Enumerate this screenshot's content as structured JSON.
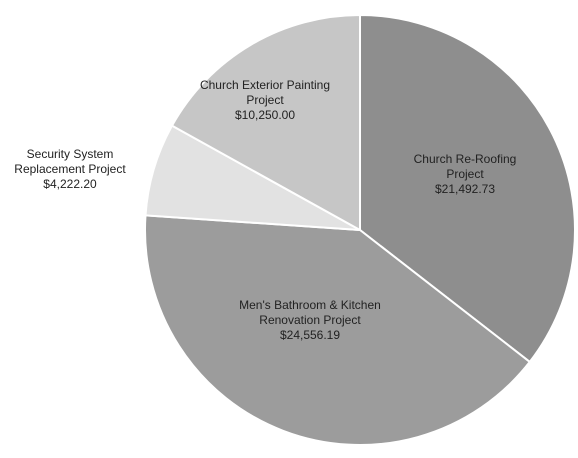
{
  "chart_data": {
    "type": "pie",
    "categories": [
      "Church Re-Roofing Project",
      "Men's Bathroom & Kitchen Renovation Project",
      "Security System Replacement Project",
      "Church Exterior Painting Project"
    ],
    "values": [
      21492.73,
      24556.19,
      4222.2,
      10250.0
    ],
    "value_labels": [
      "$21,492.73",
      "$24,556.19",
      "$4,222.20",
      "$10,250.00"
    ],
    "colors": [
      "#8e8e8e",
      "#9c9c9c",
      "#e2e2e2",
      "#c6c6c6"
    ]
  }
}
